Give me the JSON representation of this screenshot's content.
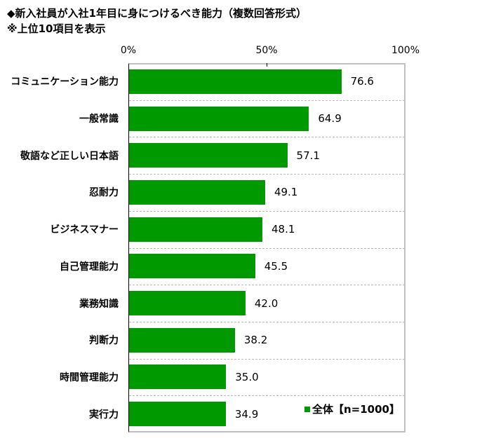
{
  "title": "◆新入社員が入社1年目に身につけるべき能力（複数回答形式）",
  "subtitle": "※上位10項目を表示",
  "chart_data": {
    "type": "bar",
    "orientation": "horizontal",
    "categories": [
      "コミュニケーション能力",
      "一般常識",
      "敬語など正しい日本語",
      "忍耐力",
      "ビジネスマナー",
      "自己管理能力",
      "業務知識",
      "判断力",
      "時間管理能力",
      "実行力"
    ],
    "series": [
      {
        "name": "全体【n=1000】",
        "values": [
          76.6,
          64.9,
          57.1,
          49.1,
          48.1,
          45.5,
          42.0,
          38.2,
          35.0,
          34.9
        ],
        "color": "#009900"
      }
    ],
    "value_labels": [
      "76.6",
      "64.9",
      "57.1",
      "49.1",
      "48.1",
      "45.5",
      "42.0",
      "38.2",
      "35.0",
      "34.9"
    ],
    "xlim": [
      0,
      100
    ],
    "xticks": [
      "0%",
      "50%",
      "100%"
    ],
    "legend": "bottom-right",
    "legend_label": "全体【n=1000】"
  }
}
